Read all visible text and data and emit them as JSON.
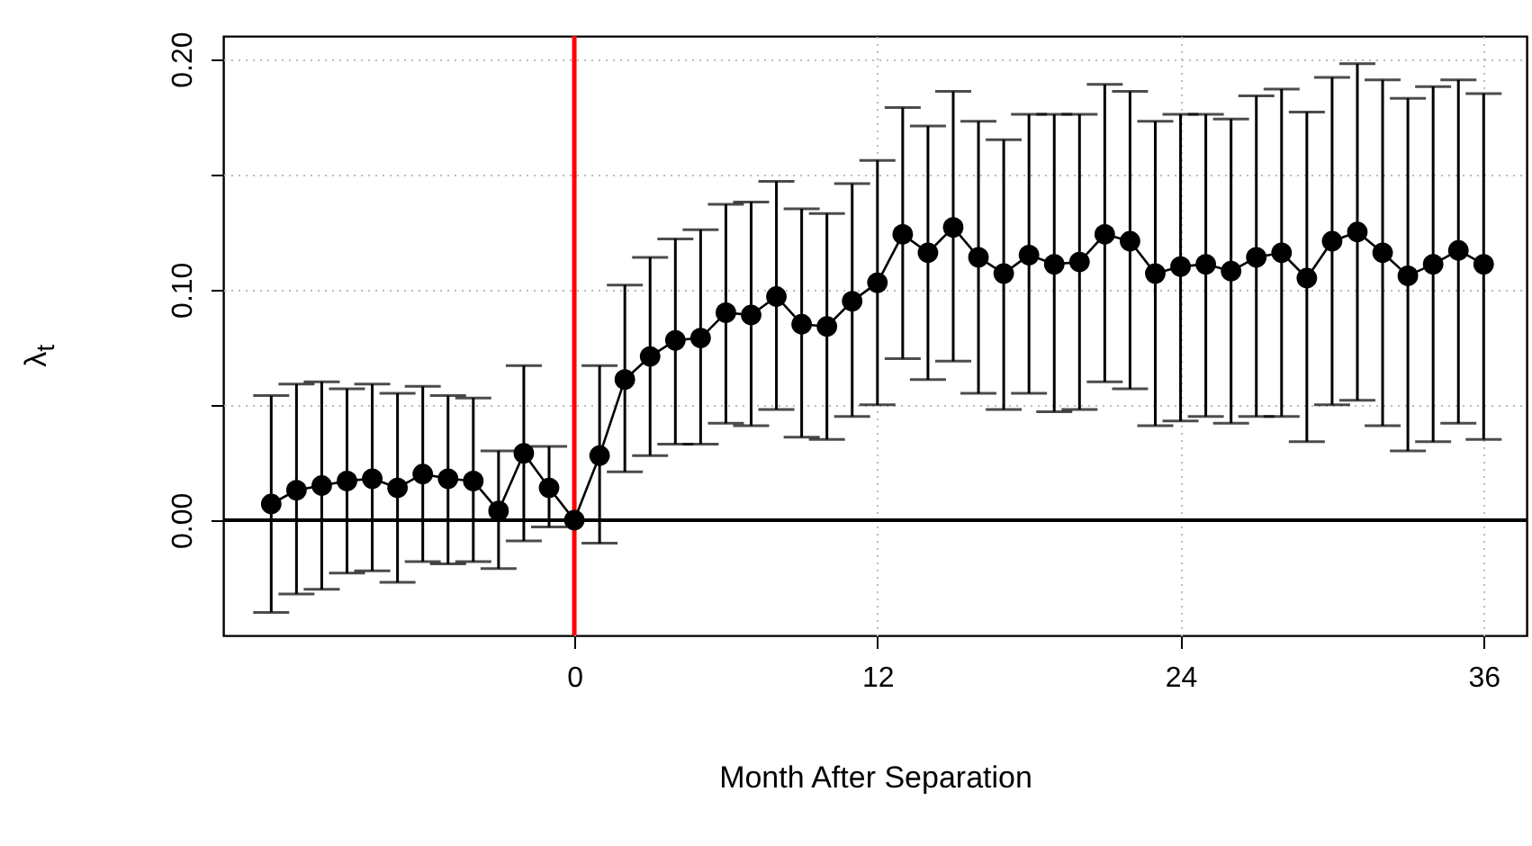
{
  "chart_data": {
    "type": "line",
    "xlabel": "Month After Separation",
    "ylabel": "λ$_{t}$",
    "x": [
      -12,
      -11,
      -10,
      -9,
      -8,
      -7,
      -6,
      -5,
      -4,
      -3,
      -2,
      -1,
      0,
      1,
      2,
      3,
      4,
      5,
      6,
      7,
      8,
      9,
      10,
      11,
      12,
      13,
      14,
      15,
      16,
      17,
      18,
      19,
      20,
      21,
      22,
      23,
      24,
      25,
      26,
      27,
      28,
      29,
      30,
      31,
      32,
      33,
      34,
      35,
      36
    ],
    "series": [
      {
        "color": "#000000",
        "values": [
          0.007,
          0.013,
          0.015,
          0.017,
          0.018,
          0.014,
          0.02,
          0.018,
          0.017,
          0.004,
          0.029,
          0.014,
          0.0,
          0.028,
          0.061,
          0.071,
          0.078,
          0.079,
          0.09,
          0.089,
          0.097,
          0.085,
          0.084,
          0.095,
          0.103,
          0.124,
          0.116,
          0.127,
          0.114,
          0.107,
          0.115,
          0.111,
          0.112,
          0.124,
          0.121,
          0.107,
          0.11,
          0.111,
          0.108,
          0.114,
          0.116,
          0.105,
          0.121,
          0.125,
          0.116,
          0.106,
          0.111,
          0.117,
          0.111
        ],
        "errors": [
          [
            -0.04,
            0.054
          ],
          [
            -0.032,
            0.059
          ],
          [
            -0.03,
            0.06
          ],
          [
            -0.023,
            0.057
          ],
          [
            -0.022,
            0.059
          ],
          [
            -0.027,
            0.055
          ],
          [
            -0.018,
            0.058
          ],
          [
            -0.019,
            0.054
          ],
          [
            -0.018,
            0.053
          ],
          [
            -0.021,
            0.03
          ],
          [
            -0.009,
            0.067
          ],
          [
            -0.003,
            0.032
          ],
          null,
          [
            -0.01,
            0.067
          ],
          [
            0.021,
            0.102
          ],
          [
            0.028,
            0.114
          ],
          [
            0.033,
            0.122
          ],
          [
            0.033,
            0.126
          ],
          [
            0.042,
            0.137
          ],
          [
            0.041,
            0.138
          ],
          [
            0.048,
            0.147
          ],
          [
            0.036,
            0.135
          ],
          [
            0.035,
            0.133
          ],
          [
            0.045,
            0.146
          ],
          [
            0.05,
            0.156
          ],
          [
            0.07,
            0.179
          ],
          [
            0.061,
            0.171
          ],
          [
            0.069,
            0.186
          ],
          [
            0.055,
            0.173
          ],
          [
            0.048,
            0.165
          ],
          [
            0.055,
            0.176
          ],
          [
            0.047,
            0.176
          ],
          [
            0.048,
            0.176
          ],
          [
            0.06,
            0.189
          ],
          [
            0.057,
            0.186
          ],
          [
            0.041,
            0.173
          ],
          [
            0.043,
            0.176
          ],
          [
            0.045,
            0.176
          ],
          [
            0.042,
            0.174
          ],
          [
            0.045,
            0.184
          ],
          [
            0.045,
            0.187
          ],
          [
            0.034,
            0.177
          ],
          [
            0.05,
            0.192
          ],
          [
            0.052,
            0.198
          ],
          [
            0.041,
            0.191
          ],
          [
            0.03,
            0.183
          ],
          [
            0.034,
            0.188
          ],
          [
            0.042,
            0.191
          ],
          [
            0.035,
            0.185
          ]
        ]
      }
    ],
    "xlim": [
      -13.9,
      37.7
    ],
    "xticks": [
      0,
      12,
      24,
      36
    ],
    "ylim": [
      -0.05,
      0.21
    ],
    "yticks": [
      {
        "value": 0,
        "label": "0.00"
      },
      {
        "value": 0.05,
        "label": null
      },
      {
        "value": 0.1,
        "label": "0.10"
      },
      {
        "value": 0.15,
        "label": null
      },
      {
        "value": 0.2,
        "label": "0.20"
      }
    ],
    "grid": true,
    "marker": "circle",
    "line_style": "solid",
    "ref_lines": [
      {
        "axis": "y",
        "value": 0,
        "color": "#000000"
      },
      {
        "axis": "x",
        "value": 0,
        "color": "#ff0000"
      }
    ]
  }
}
